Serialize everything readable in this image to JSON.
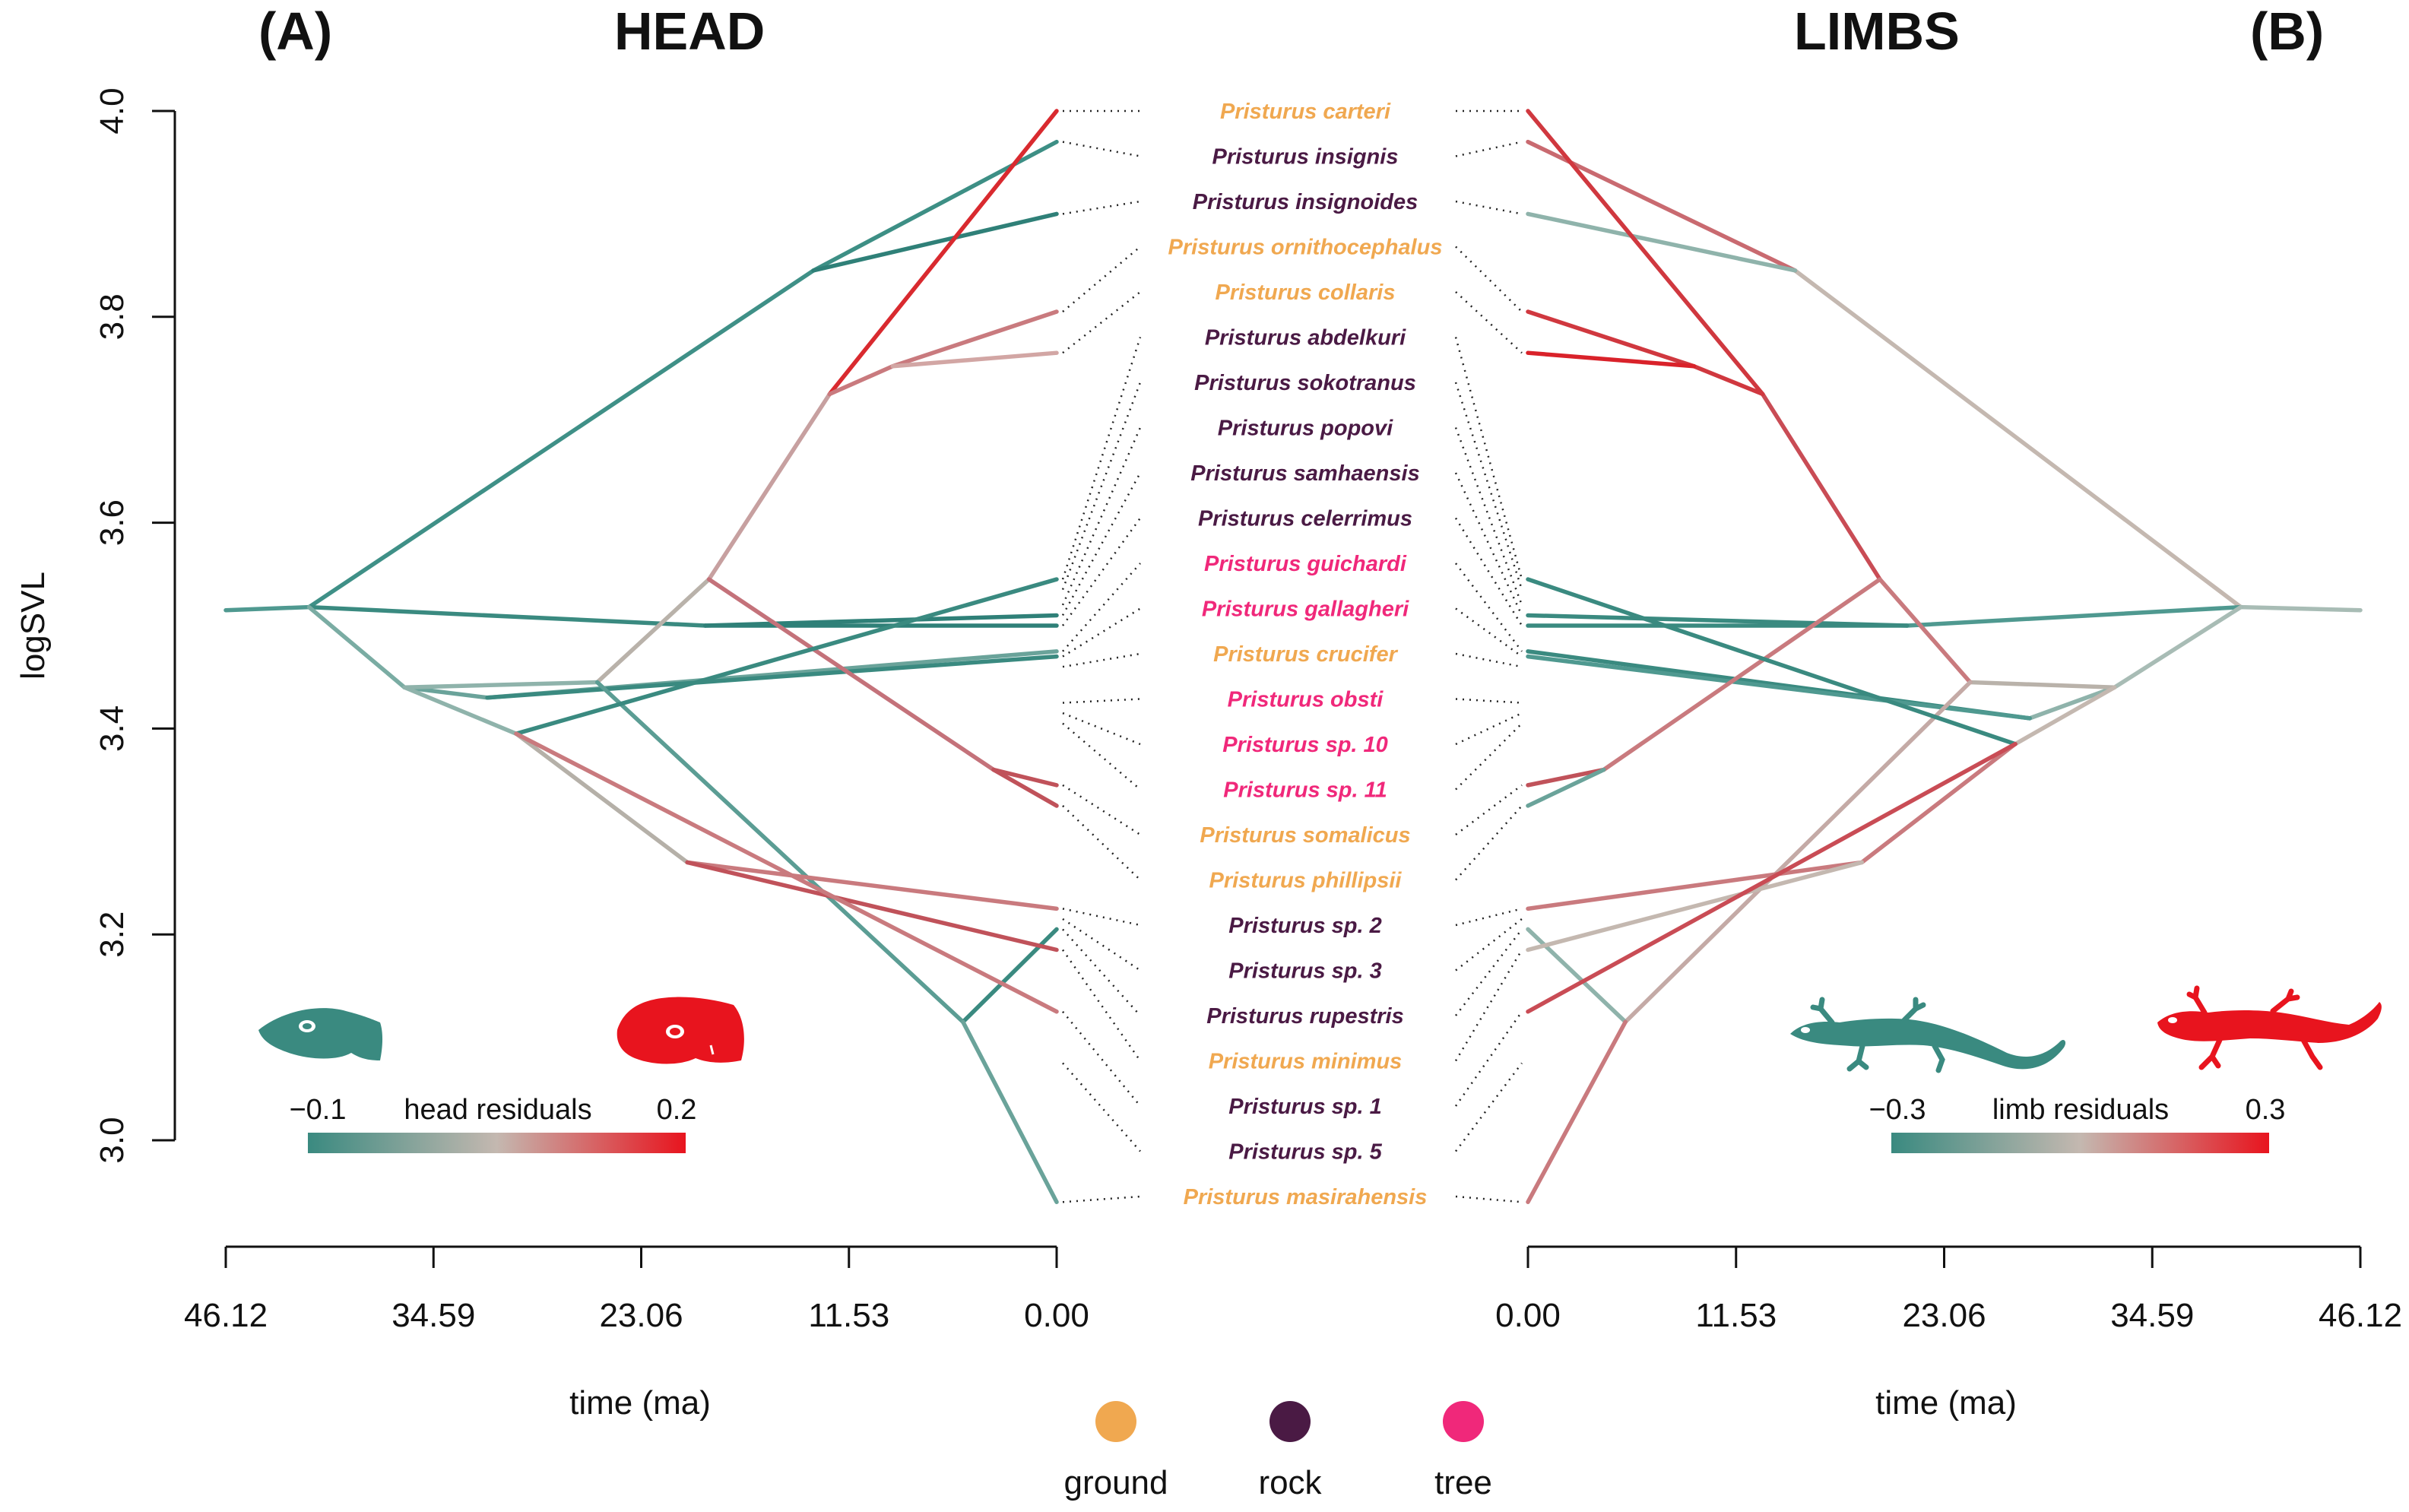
{
  "chart_data": [
    {
      "type": "line",
      "panel_label": "(A)",
      "title": "HEAD",
      "xlabel": "time (ma)",
      "ylabel": "logSVL",
      "x_ticks": [
        "46.12",
        "34.59",
        "23.06",
        "11.53",
        "0.00"
      ],
      "y_ticks": [
        "3.0",
        "3.2",
        "3.4",
        "3.6",
        "3.8",
        "4.0"
      ],
      "xlim": [
        46.12,
        0
      ],
      "ylim": [
        3.0,
        4.0
      ],
      "colorbar": {
        "min_label": "−0.1",
        "label": "head residuals",
        "max_label": "0.2",
        "low_color": "#3a8a80",
        "mid_color": "#c4b8b0",
        "high_color": "#e8141e"
      },
      "icon": "gecko-head-silhouette",
      "tips": [
        {
          "species": "Pristurus carteri",
          "logSVL": 4.0,
          "color": "#d92a2f"
        },
        {
          "species": "Pristurus insignis",
          "logSVL": 3.97,
          "color": "#3d8f85"
        },
        {
          "species": "Pristurus insignoides",
          "logSVL": 3.9,
          "color": "#2f8078"
        },
        {
          "species": "Pristurus ornithocephalus",
          "logSVL": 3.805,
          "color": "#c97a7e"
        },
        {
          "species": "Pristurus collaris",
          "logSVL": 3.765,
          "color": "#d2a6a4"
        },
        {
          "species": "Pristurus abdelkuri",
          "logSVL": 3.545,
          "color": "#2f8078"
        },
        {
          "species": "Pristurus sokotranus",
          "logSVL": 3.535,
          "color": "#3a8a80"
        },
        {
          "species": "Pristurus popovi",
          "logSVL": 3.52,
          "color": "#3a8a80"
        },
        {
          "species": "Pristurus samhaensis",
          "logSVL": 3.51,
          "color": "#2f8078"
        },
        {
          "species": "Pristurus celerrimus",
          "logSVL": 3.5,
          "color": "#2f8078"
        },
        {
          "species": "Pristurus guichardi",
          "logSVL": 3.475,
          "color": "#6aa39a"
        },
        {
          "species": "Pristurus gallagheri",
          "logSVL": 3.47,
          "color": "#3a8a80"
        },
        {
          "species": "Pristurus crucifer",
          "logSVL": 3.46,
          "color": "#6aa39a"
        },
        {
          "species": "Pristurus obsti",
          "logSVL": 3.425,
          "color": "#9ab8b0"
        },
        {
          "species": "Pristurus sp. 10",
          "logSVL": 3.415,
          "color": "#3a8a80"
        },
        {
          "species": "Pristurus sp. 11",
          "logSVL": 3.405,
          "color": "#3a8a80"
        },
        {
          "species": "Pristurus somalicus",
          "logSVL": 3.345,
          "color": "#c0525a"
        },
        {
          "species": "Pristurus phillipsii",
          "logSVL": 3.325,
          "color": "#c0525a"
        },
        {
          "species": "Pristurus sp. 2",
          "logSVL": 3.225,
          "color": "#c97a7e"
        },
        {
          "species": "Pristurus sp. 3",
          "logSVL": 3.215,
          "color": "#6aa39a"
        },
        {
          "species": "Pristurus rupestris",
          "logSVL": 3.205,
          "color": "#3a8a80"
        },
        {
          "species": "Pristurus minimus",
          "logSVL": 3.185,
          "color": "#c0525a"
        },
        {
          "species": "Pristurus sp. 1",
          "logSVL": 3.125,
          "color": "#c97a7e"
        },
        {
          "species": "Pristurus sp. 5",
          "logSVL": 3.075,
          "color": "#6aa39a"
        },
        {
          "species": "Pristurus masirahensis",
          "logSVL": 2.94,
          "color": "#6aa39a"
        }
      ],
      "branches": [
        {
          "from": [
            46.12,
            3.515
          ],
          "to": [
            41.5,
            3.518
          ],
          "color": "#4f9990"
        },
        {
          "from": [
            41.5,
            3.518
          ],
          "to": [
            13.5,
            3.845
          ],
          "color": "#3f9087"
        },
        {
          "from": [
            13.5,
            3.845
          ],
          "to": [
            0,
            3.97
          ],
          "color": "#3d8f85"
        },
        {
          "from": [
            13.5,
            3.845
          ],
          "to": [
            0,
            3.9
          ],
          "color": "#2f8078"
        },
        {
          "from": [
            41.5,
            3.518
          ],
          "to": [
            19.5,
            3.5
          ],
          "color": "#3a8a80"
        },
        {
          "from": [
            19.5,
            3.5
          ],
          "to": [
            0,
            3.5
          ],
          "color": "#2f8078"
        },
        {
          "from": [
            19.5,
            3.5
          ],
          "to": [
            0,
            3.51
          ],
          "color": "#2f8078"
        },
        {
          "from": [
            41.5,
            3.518
          ],
          "to": [
            36.2,
            3.44
          ],
          "color": "#7aaca3"
        },
        {
          "from": [
            36.2,
            3.44
          ],
          "to": [
            31.6,
            3.43
          ],
          "color": "#6aa39a"
        },
        {
          "from": [
            31.6,
            3.43
          ],
          "to": [
            0,
            3.475
          ],
          "color": "#6aa39a"
        },
        {
          "from": [
            31.6,
            3.43
          ],
          "to": [
            0,
            3.47
          ],
          "color": "#3a8a80"
        },
        {
          "from": [
            36.2,
            3.44
          ],
          "to": [
            25.5,
            3.445
          ],
          "color": "#8fb3ab"
        },
        {
          "from": [
            25.5,
            3.445
          ],
          "to": [
            19.3,
            3.545
          ],
          "color": "#b9b2aa"
        },
        {
          "from": [
            19.3,
            3.545
          ],
          "to": [
            12.6,
            3.725
          ],
          "color": "#c7a0a0"
        },
        {
          "from": [
            12.6,
            3.725
          ],
          "to": [
            0,
            4.0
          ],
          "color": "#d92a2f"
        },
        {
          "from": [
            12.6,
            3.725
          ],
          "to": [
            9.1,
            3.752
          ],
          "color": "#c97a7e"
        },
        {
          "from": [
            9.1,
            3.752
          ],
          "to": [
            0,
            3.805
          ],
          "color": "#c97a7e"
        },
        {
          "from": [
            9.1,
            3.752
          ],
          "to": [
            0,
            3.765
          ],
          "color": "#d2a6a4"
        },
        {
          "from": [
            19.3,
            3.545
          ],
          "to": [
            3.5,
            3.36
          ],
          "color": "#c4727a"
        },
        {
          "from": [
            3.5,
            3.36
          ],
          "to": [
            0,
            3.345
          ],
          "color": "#c0525a"
        },
        {
          "from": [
            3.5,
            3.36
          ],
          "to": [
            0,
            3.325
          ],
          "color": "#c0525a"
        },
        {
          "from": [
            25.5,
            3.445
          ],
          "to": [
            5.2,
            3.115
          ],
          "color": "#5b9d94"
        },
        {
          "from": [
            5.2,
            3.115
          ],
          "to": [
            0,
            3.205
          ],
          "color": "#3a8a80"
        },
        {
          "from": [
            5.2,
            3.115
          ],
          "to": [
            0,
            2.94
          ],
          "color": "#6aa39a"
        },
        {
          "from": [
            36.2,
            3.44
          ],
          "to": [
            30.0,
            3.395
          ],
          "color": "#8fb3ab"
        },
        {
          "from": [
            30.0,
            3.395
          ],
          "to": [
            0,
            3.545
          ],
          "color": "#3a8a80"
        },
        {
          "from": [
            30.0,
            3.395
          ],
          "to": [
            20.5,
            3.27
          ],
          "color": "#b5b0a8"
        },
        {
          "from": [
            20.5,
            3.27
          ],
          "to": [
            0,
            3.225
          ],
          "color": "#c97a7e"
        },
        {
          "from": [
            20.5,
            3.27
          ],
          "to": [
            0,
            3.185
          ],
          "color": "#c0525a"
        },
        {
          "from": [
            30.0,
            3.395
          ],
          "to": [
            0,
            3.125
          ],
          "color": "#c97a7e"
        }
      ]
    },
    {
      "type": "line",
      "panel_label": "(B)",
      "title": "LIMBS",
      "xlabel": "time (ma)",
      "ylabel": "",
      "x_ticks": [
        "0.00",
        "11.53",
        "23.06",
        "34.59",
        "46.12"
      ],
      "xlim": [
        0,
        46.12
      ],
      "ylim": [
        3.0,
        4.0
      ],
      "colorbar": {
        "min_label": "−0.3",
        "label": "limb residuals",
        "max_label": "0.3",
        "low_color": "#3a8a80",
        "mid_color": "#c4b8b0",
        "high_color": "#e8141e"
      },
      "icon": "gecko-full-body-silhouette",
      "tips_logSVL_order": "same as head panel",
      "branches": [
        {
          "from": [
            46.12,
            3.515
          ],
          "to": [
            39.5,
            3.518
          ],
          "color": "#a8bcb5"
        },
        {
          "from": [
            39.5,
            3.518
          ],
          "to": [
            14.8,
            3.845
          ],
          "color": "#c4b8b0"
        },
        {
          "from": [
            14.8,
            3.845
          ],
          "to": [
            0,
            3.97
          ],
          "color": "#c96a70"
        },
        {
          "from": [
            14.8,
            3.845
          ],
          "to": [
            0,
            3.9
          ],
          "color": "#8fb3ab"
        },
        {
          "from": [
            39.5,
            3.518
          ],
          "to": [
            21.0,
            3.5
          ],
          "color": "#4f9990"
        },
        {
          "from": [
            21.0,
            3.5
          ],
          "to": [
            0,
            3.5
          ],
          "color": "#3a8a80"
        },
        {
          "from": [
            21.0,
            3.5
          ],
          "to": [
            0,
            3.51
          ],
          "color": "#3a8a80"
        },
        {
          "from": [
            39.5,
            3.518
          ],
          "to": [
            32.5,
            3.44
          ],
          "color": "#a8bcb5"
        },
        {
          "from": [
            32.5,
            3.44
          ],
          "to": [
            27.8,
            3.41
          ],
          "color": "#8fb3ab"
        },
        {
          "from": [
            27.8,
            3.41
          ],
          "to": [
            0,
            3.475
          ],
          "color": "#3a8a80"
        },
        {
          "from": [
            27.8,
            3.41
          ],
          "to": [
            0,
            3.47
          ],
          "color": "#4f9990"
        },
        {
          "from": [
            32.5,
            3.44
          ],
          "to": [
            24.5,
            3.445
          ],
          "color": "#b9b2aa"
        },
        {
          "from": [
            24.5,
            3.445
          ],
          "to": [
            19.5,
            3.545
          ],
          "color": "#c97a7e"
        },
        {
          "from": [
            19.5,
            3.545
          ],
          "to": [
            13.0,
            3.725
          ],
          "color": "#c94c55"
        },
        {
          "from": [
            13.0,
            3.725
          ],
          "to": [
            0,
            4.0
          ],
          "color": "#d0383f"
        },
        {
          "from": [
            13.0,
            3.725
          ],
          "to": [
            9.2,
            3.752
          ],
          "color": "#d0383f"
        },
        {
          "from": [
            9.2,
            3.752
          ],
          "to": [
            0,
            3.805
          ],
          "color": "#d0383f"
        },
        {
          "from": [
            9.2,
            3.752
          ],
          "to": [
            0,
            3.765
          ],
          "color": "#d9222a"
        },
        {
          "from": [
            19.5,
            3.545
          ],
          "to": [
            4.2,
            3.36
          ],
          "color": "#c97a7e"
        },
        {
          "from": [
            4.2,
            3.36
          ],
          "to": [
            0,
            3.345
          ],
          "color": "#c0525a"
        },
        {
          "from": [
            4.2,
            3.36
          ],
          "to": [
            0,
            3.325
          ],
          "color": "#6aa39a"
        },
        {
          "from": [
            24.5,
            3.445
          ],
          "to": [
            5.4,
            3.115
          ],
          "color": "#c4aaa6"
        },
        {
          "from": [
            5.4,
            3.115
          ],
          "to": [
            0,
            3.205
          ],
          "color": "#8fb3ab"
        },
        {
          "from": [
            5.4,
            3.115
          ],
          "to": [
            0,
            2.94
          ],
          "color": "#c97a7e"
        },
        {
          "from": [
            32.5,
            3.44
          ],
          "to": [
            27.0,
            3.385
          ],
          "color": "#c4b8b0"
        },
        {
          "from": [
            27.0,
            3.385
          ],
          "to": [
            0,
            3.545
          ],
          "color": "#3a8a80"
        },
        {
          "from": [
            27.0,
            3.385
          ],
          "to": [
            18.5,
            3.27
          ],
          "color": "#c97a7e"
        },
        {
          "from": [
            18.5,
            3.27
          ],
          "to": [
            0,
            3.225
          ],
          "color": "#c97a7e"
        },
        {
          "from": [
            18.5,
            3.27
          ],
          "to": [
            0,
            3.185
          ],
          "color": "#c4b8b0"
        },
        {
          "from": [
            27.0,
            3.385
          ],
          "to": [
            0,
            3.125
          ],
          "color": "#c94c55"
        }
      ]
    }
  ],
  "species_list": [
    {
      "name": "Pristurus carteri",
      "habitat": "ground"
    },
    {
      "name": "Pristurus insignis",
      "habitat": "rock"
    },
    {
      "name": "Pristurus insignoides",
      "habitat": "rock"
    },
    {
      "name": "Pristurus ornithocephalus",
      "habitat": "ground"
    },
    {
      "name": "Pristurus collaris",
      "habitat": "ground"
    },
    {
      "name": "Pristurus abdelkuri",
      "habitat": "rock"
    },
    {
      "name": "Pristurus sokotranus",
      "habitat": "rock"
    },
    {
      "name": "Pristurus popovi",
      "habitat": "rock"
    },
    {
      "name": "Pristurus samhaensis",
      "habitat": "rock"
    },
    {
      "name": "Pristurus celerrimus",
      "habitat": "rock"
    },
    {
      "name": "Pristurus guichardi",
      "habitat": "tree"
    },
    {
      "name": "Pristurus gallagheri",
      "habitat": "tree"
    },
    {
      "name": "Pristurus crucifer",
      "habitat": "ground"
    },
    {
      "name": "Pristurus obsti",
      "habitat": "tree"
    },
    {
      "name": "Pristurus sp. 10",
      "habitat": "tree"
    },
    {
      "name": "Pristurus sp. 11",
      "habitat": "tree"
    },
    {
      "name": "Pristurus somalicus",
      "habitat": "ground"
    },
    {
      "name": "Pristurus phillipsii",
      "habitat": "ground"
    },
    {
      "name": "Pristurus sp. 2",
      "habitat": "rock"
    },
    {
      "name": "Pristurus sp. 3",
      "habitat": "rock"
    },
    {
      "name": "Pristurus rupestris",
      "habitat": "rock"
    },
    {
      "name": "Pristurus minimus",
      "habitat": "ground"
    },
    {
      "name": "Pristurus sp. 1",
      "habitat": "rock"
    },
    {
      "name": "Pristurus sp. 5",
      "habitat": "rock"
    },
    {
      "name": "Pristurus masirahensis",
      "habitat": "ground"
    }
  ],
  "habitat_legend": [
    {
      "label": "ground",
      "color": "#f0a850"
    },
    {
      "label": "rock",
      "color": "#4a1a44"
    },
    {
      "label": "tree",
      "color": "#f0287a"
    }
  ]
}
